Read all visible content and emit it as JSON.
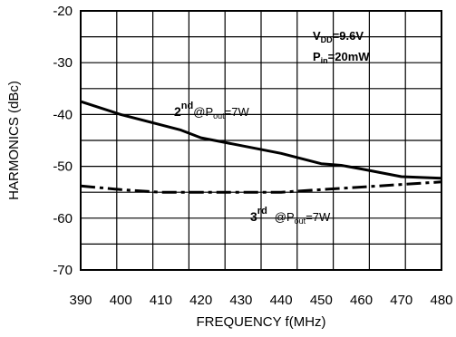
{
  "chart_data": {
    "type": "line",
    "xlabel": "FREQUENCY f(MHz)",
    "ylabel": "HARMONICS (dBc)",
    "xlim": [
      390,
      480
    ],
    "ylim": [
      -70,
      -20
    ],
    "x_ticks": [
      "390",
      "400",
      "410",
      "420",
      "430",
      "440",
      "450",
      "460",
      "470",
      "480"
    ],
    "y_ticks": [
      "-20",
      "-30",
      "-40",
      "-50",
      "-60",
      "-70"
    ],
    "grid": true,
    "series": [
      {
        "label": {
          "order": "2",
          "suffix": "nd",
          "cond_pre": "@P",
          "cond_sub": "out",
          "cond_post": "=7W"
        },
        "style": "solid",
        "x": [
          390,
          400,
          410,
          415,
          420,
          430,
          440,
          450,
          455,
          460,
          470,
          480
        ],
        "y": [
          -37.5,
          -40,
          -42,
          -43,
          -44.5,
          -46,
          -47.5,
          -49.5,
          -49.8,
          -50.5,
          -52,
          -52.3
        ]
      },
      {
        "label": {
          "order": "3",
          "suffix": "rd",
          "cond_pre": "@P",
          "cond_sub": "out",
          "cond_post": "=7W"
        },
        "style": "dashdot",
        "x": [
          390,
          400,
          410,
          420,
          430,
          440,
          450,
          460,
          470,
          480
        ],
        "y": [
          -53.8,
          -54.5,
          -55,
          -55,
          -55,
          -55,
          -54.5,
          -54,
          -53.5,
          -53
        ]
      }
    ],
    "conditions": [
      {
        "pre": "V",
        "sub": "DD",
        "post": "=9.6V"
      },
      {
        "pre": "P",
        "sub": "in",
        "post": "=20mW"
      }
    ]
  }
}
